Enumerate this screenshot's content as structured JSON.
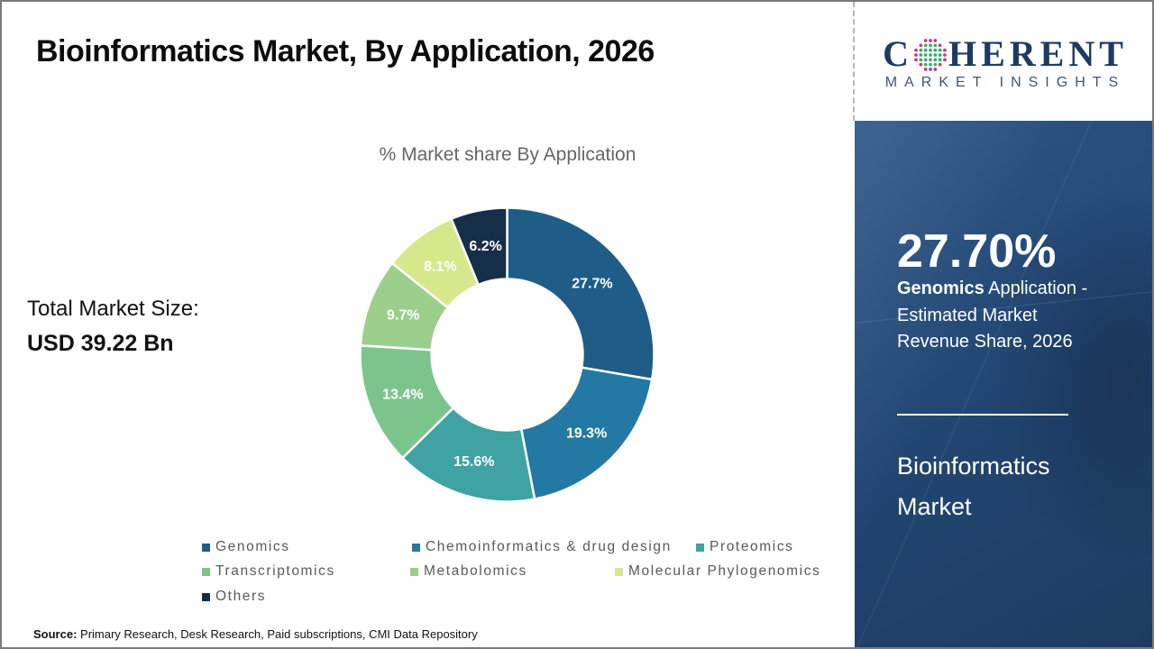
{
  "header": {
    "title": "Bioinformatics Market, By Application, 2026"
  },
  "logo": {
    "brand_prefix": "C",
    "brand_suffix": "HERENT",
    "subtitle": "MARKET INSIGHTS",
    "brand_color": "#1E3A64",
    "mark_colors": {
      "teal": "#2BA8A0",
      "green": "#4CAE46",
      "magenta": "#C13F90"
    }
  },
  "stats": {
    "total_label": "Total Market Size:",
    "total_value": "USD 39.22 Bn"
  },
  "chart_data": {
    "type": "donut",
    "title": "% Market share By Application",
    "categories": [
      "Genomics",
      "Chemoinformatics & drug design",
      "Proteomics",
      "Transcriptomics",
      "Metabolomics",
      "Molecular Phylogenomics",
      "Others"
    ],
    "values": [
      27.7,
      19.3,
      15.6,
      13.4,
      9.7,
      8.1,
      6.2
    ],
    "labels": [
      "27.7%",
      "19.3%",
      "15.6%",
      "13.4%",
      "9.7%",
      "8.1%",
      "6.2%"
    ],
    "colors": [
      "#1F5C87",
      "#2478A4",
      "#3EA3A2",
      "#7BC58D",
      "#9CCF8C",
      "#D7E78C",
      "#152F49"
    ],
    "start_angle_deg": 0,
    "direction": "clockwise",
    "inner_radius_ratio": 0.515,
    "label_color": "#FFFFFF",
    "legend_position": "bottom"
  },
  "side_panel": {
    "highlight_value": "27.70%",
    "highlight_bold": "Genomics",
    "highlight_rest": " Application - Estimated Market Revenue Share, 2026",
    "product_name": "Bioinformatics Market",
    "background_color": "#21456E",
    "text_color": "#FFFFFF"
  },
  "source": {
    "prefix": "Source:",
    "text": " Primary Research, Desk Research, Paid subscriptions, CMI Data Repository"
  }
}
